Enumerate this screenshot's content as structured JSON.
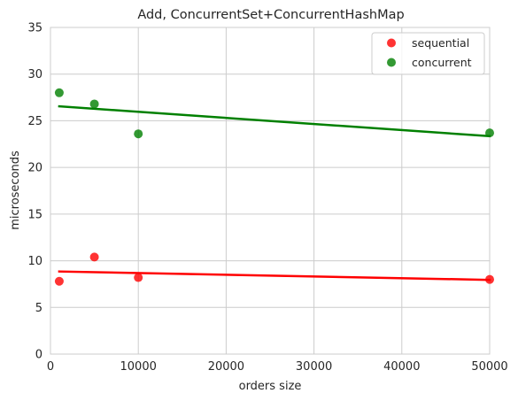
{
  "chart_data": {
    "type": "scatter",
    "title": "Add, ConcurrentSet+ConcurrentHashMap",
    "xlabel": "orders size",
    "ylabel": "microseconds",
    "xlim": [
      0,
      50000
    ],
    "ylim": [
      0,
      35
    ],
    "xticks": [
      0,
      10000,
      20000,
      30000,
      40000,
      50000
    ],
    "yticks": [
      0,
      5,
      10,
      15,
      20,
      25,
      30,
      35
    ],
    "grid": true,
    "legend_position": "top-right",
    "series": [
      {
        "name": "sequential",
        "color": "#ff0000",
        "points": [
          [
            1000,
            7.8
          ],
          [
            5000,
            10.4
          ],
          [
            10000,
            8.2
          ],
          [
            50000,
            8.0
          ]
        ],
        "regression": [
          [
            1000,
            8.85
          ],
          [
            50000,
            7.95
          ]
        ]
      },
      {
        "name": "concurrent",
        "color": "#008000",
        "points": [
          [
            1000,
            28.0
          ],
          [
            5000,
            26.8
          ],
          [
            10000,
            23.6
          ],
          [
            50000,
            23.7
          ]
        ],
        "regression": [
          [
            1000,
            26.55
          ],
          [
            50000,
            23.35
          ]
        ]
      }
    ]
  }
}
